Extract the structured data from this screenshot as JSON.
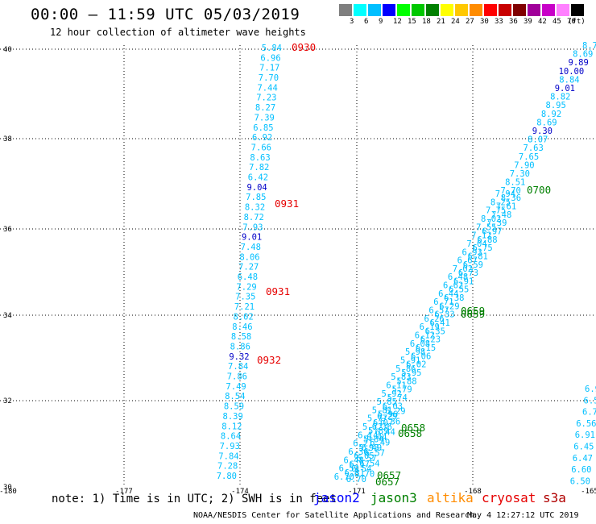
{
  "title": "00:00 – 11:59 UTC 05/03/2019",
  "subtitle": "12 hour collection of altimeter wave heights",
  "legend": {
    "unit": "(ft)",
    "colors": [
      "#7f7f7f",
      "#00ffff",
      "#00bfff",
      "#0000ff",
      "#00ff00",
      "#00c800",
      "#008000",
      "#ffff00",
      "#ffc800",
      "#ff8c00",
      "#ff0000",
      "#c80000",
      "#800000",
      "#a0009a",
      "#c800c8",
      "#ff80ff",
      "#000000"
    ],
    "labels": [
      "3",
      "6",
      "9",
      "12",
      "15",
      "18",
      "21",
      "24",
      "27",
      "30",
      "33",
      "36",
      "39",
      "42",
      "45",
      "70"
    ]
  },
  "axes": {
    "y_labels": [
      "40",
      "38",
      "36",
      "34",
      "32",
      "30"
    ],
    "x_labels": [
      "-180",
      "-177",
      "-174",
      "-171",
      "-168",
      "-165"
    ]
  },
  "colors": {
    "light": "#00bfff",
    "dark": "#0000c8",
    "red": "#e60000",
    "green": "#008000",
    "orange": "#ff8c00"
  },
  "track_left": [
    {
      "v": "5.84",
      "c": "light"
    },
    {
      "v": "6.96",
      "c": "light"
    },
    {
      "v": "7.17",
      "c": "light"
    },
    {
      "v": "7.70",
      "c": "light"
    },
    {
      "v": "7.44",
      "c": "light"
    },
    {
      "v": "7.23",
      "c": "light"
    },
    {
      "v": "8.27",
      "c": "light"
    },
    {
      "v": "7.39",
      "c": "light"
    },
    {
      "v": "6.85",
      "c": "light"
    },
    {
      "v": "6.92",
      "c": "light"
    },
    {
      "v": "7.66",
      "c": "light"
    },
    {
      "v": "8.63",
      "c": "light"
    },
    {
      "v": "7.82",
      "c": "light"
    },
    {
      "v": "6.42",
      "c": "light"
    },
    {
      "v": "9.04",
      "c": "dark"
    },
    {
      "v": "7.85",
      "c": "light"
    },
    {
      "v": "8.32",
      "c": "light"
    },
    {
      "v": "8.72",
      "c": "light"
    },
    {
      "v": "7.93",
      "c": "light"
    },
    {
      "v": "9.01",
      "c": "dark"
    },
    {
      "v": "7.48",
      "c": "light"
    },
    {
      "v": "8.06",
      "c": "light"
    },
    {
      "v": "7.27",
      "c": "light"
    },
    {
      "v": "6.48",
      "c": "light"
    },
    {
      "v": "7.29",
      "c": "light"
    },
    {
      "v": "7.35",
      "c": "light"
    },
    {
      "v": "7.21",
      "c": "light"
    },
    {
      "v": "8.02",
      "c": "light"
    },
    {
      "v": "8.46",
      "c": "light"
    },
    {
      "v": "8.58",
      "c": "light"
    },
    {
      "v": "8.86",
      "c": "light"
    },
    {
      "v": "9.32",
      "c": "dark"
    },
    {
      "v": "7.84",
      "c": "light"
    },
    {
      "v": "7.86",
      "c": "light"
    },
    {
      "v": "7.49",
      "c": "light"
    },
    {
      "v": "8.54",
      "c": "light"
    },
    {
      "v": "8.59",
      "c": "light"
    },
    {
      "v": "8.39",
      "c": "light"
    },
    {
      "v": "8.12",
      "c": "light"
    },
    {
      "v": "8.64",
      "c": "light"
    },
    {
      "v": "7.93",
      "c": "light"
    },
    {
      "v": "7.84",
      "c": "light"
    },
    {
      "v": "7.28",
      "c": "light"
    },
    {
      "v": "7.80",
      "c": "light"
    }
  ],
  "left_times": [
    "0930",
    "0931",
    "0931",
    "0932"
  ],
  "track_diag_top": [
    {
      "v": "8.7",
      "c": "light"
    },
    {
      "v": "8.69",
      "c": "light"
    },
    {
      "v": "9.89",
      "c": "dark"
    },
    {
      "v": "10.00",
      "c": "dark"
    },
    {
      "v": "8.84",
      "c": "light"
    },
    {
      "v": "9.01",
      "c": "dark"
    },
    {
      "v": "8.82",
      "c": "light"
    },
    {
      "v": "8.95",
      "c": "light"
    },
    {
      "v": "8.92",
      "c": "light"
    },
    {
      "v": "8.69",
      "c": "light"
    },
    {
      "v": "9.30",
      "c": "dark"
    },
    {
      "v": "8.07",
      "c": "light"
    },
    {
      "v": "7.63",
      "c": "light"
    },
    {
      "v": "7.65",
      "c": "light"
    },
    {
      "v": "7.90",
      "c": "light"
    },
    {
      "v": "7.30",
      "c": "light"
    },
    {
      "v": "8.51",
      "c": "light"
    },
    {
      "v": "7.70",
      "c": "light"
    }
  ],
  "diag_clutter": [
    "7.94",
    "8.36",
    "8.25",
    "7.61",
    "7.75",
    "7.48",
    "8.02",
    "7.39",
    "7.55",
    "6.97",
    "7.12",
    "6.88",
    "7.04",
    "6.75",
    "6.93",
    "6.81",
    "6.67",
    "6.59",
    "7.02",
    "6.73",
    "6.48",
    "6.91",
    "6.62",
    "6.55",
    "6.44",
    "6.38",
    "6.71",
    "6.29",
    "6.57",
    "6.33",
    "6.26",
    "6.41",
    "6.19",
    "6.35",
    "6.12",
    "6.23",
    "6.08",
    "6.15",
    "5.98",
    "6.06",
    "5.91",
    "6.02",
    "5.86",
    "5.95",
    "5.83",
    "5.88",
    "6.11",
    "5.79",
    "5.92",
    "5.74",
    "5.85",
    "6.03",
    "5.81",
    "5.96",
    "5.77",
    "6.07",
    "5.72",
    "5.89",
    "6.14",
    "5.84",
    "6.21",
    "5.93",
    "6.36",
    "6.05",
    "6.48",
    "6.17",
    "6.59",
    "6.31",
    "6.70"
  ],
  "track_diag_low": [
    "6.70",
    "6.70",
    "6.54",
    "6.54",
    "6.57",
    "6.57",
    "6.49",
    "6.49",
    "6.44",
    "6.44",
    "6.36",
    "6.36",
    "6.29",
    "6.29"
  ],
  "diag_times": [
    "0700",
    "0659",
    "0659",
    "0658",
    "0658",
    "0657",
    "0657"
  ],
  "track_right_low": [
    "6.9",
    "6.5",
    "6.7",
    "6.56",
    "6.91",
    "6.45",
    "6.47",
    "6.60",
    "6.50"
  ],
  "note": "note: 1) Time is in UTC; 2) SWH is in feet",
  "satellites": [
    "jason2",
    "jason3",
    "altika",
    "cryosat",
    "s3a"
  ],
  "credit": "NOAA/NESDIS Center for Satellite Applications and Research",
  "stamp": "May  4 12:27:12 UTC 2019"
}
